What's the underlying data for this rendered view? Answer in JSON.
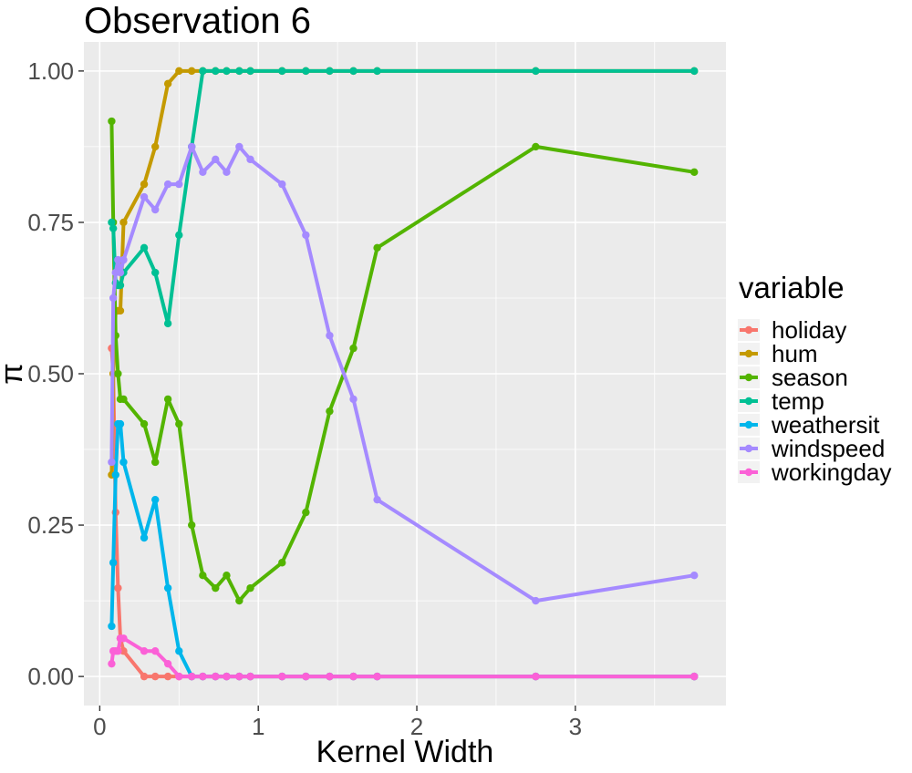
{
  "chart_data": {
    "type": "line",
    "title": "Observation 6",
    "xlabel": "Kernel Width",
    "ylabel": "π",
    "xlim": [
      -0.1,
      3.95
    ],
    "ylim": [
      -0.048,
      1.048
    ],
    "xticks": [
      0,
      1,
      2,
      3
    ],
    "yticks": [
      0.0,
      0.25,
      0.5,
      0.75,
      1.0
    ],
    "xtick_labels": [
      "0",
      "1",
      "2",
      "3"
    ],
    "ytick_labels": [
      "0.00",
      "0.25",
      "0.50",
      "0.75",
      "1.00"
    ],
    "grid": true,
    "legend": {
      "title": "variable",
      "position": "right"
    },
    "x": [
      0.075,
      0.085,
      0.1,
      0.115,
      0.13,
      0.15,
      0.28,
      0.35,
      0.43,
      0.5,
      0.58,
      0.65,
      0.73,
      0.8,
      0.88,
      0.95,
      1.15,
      1.3,
      1.45,
      1.6,
      1.75,
      2.75,
      3.75
    ],
    "series": [
      {
        "name": "holiday",
        "color": "#F8766D",
        "values": [
          0.542,
          0.5,
          0.271,
          0.146,
          0.063,
          0.042,
          0,
          0,
          0,
          0,
          0,
          0,
          0,
          0,
          0,
          0,
          0,
          0,
          0,
          0,
          0,
          0,
          0
        ]
      },
      {
        "name": "hum",
        "color": "#C49A00",
        "values": [
          0.333,
          0.5,
          0.604,
          0.604,
          0.604,
          0.75,
          0.813,
          0.875,
          0.979,
          1.0,
          1.0,
          1.0,
          1.0,
          1.0,
          1.0,
          1.0,
          1.0,
          1.0,
          1.0,
          1.0,
          1.0,
          1.0,
          1.0
        ]
      },
      {
        "name": "season",
        "color": "#53B400",
        "values": [
          0.917,
          0.75,
          0.563,
          0.5,
          0.458,
          0.458,
          0.417,
          0.354,
          0.458,
          0.417,
          0.25,
          0.167,
          0.146,
          0.167,
          0.125,
          0.146,
          0.188,
          0.271,
          0.438,
          0.542,
          0.708,
          0.875,
          0.833
        ]
      },
      {
        "name": "temp",
        "color": "#00C094",
        "values": [
          0.75,
          0.74,
          0.65,
          0.646,
          0.646,
          0.667,
          0.708,
          0.667,
          0.583,
          0.729,
          0.875,
          1.0,
          1.0,
          1.0,
          1.0,
          1.0,
          1.0,
          1.0,
          1.0,
          1.0,
          1.0,
          1.0,
          1.0
        ]
      },
      {
        "name": "weathersit",
        "color": "#00B6EB",
        "values": [
          0.083,
          0.188,
          0.333,
          0.417,
          0.417,
          0.354,
          0.229,
          0.292,
          0.146,
          0.042,
          0,
          0,
          0,
          0,
          0,
          0,
          0,
          0,
          0,
          0,
          0,
          0,
          0
        ]
      },
      {
        "name": "windspeed",
        "color": "#A58AFF",
        "values": [
          0.354,
          0.625,
          0.667,
          0.688,
          0.667,
          0.688,
          0.792,
          0.771,
          0.813,
          0.813,
          0.875,
          0.833,
          0.854,
          0.833,
          0.875,
          0.854,
          0.813,
          0.729,
          0.563,
          0.458,
          0.292,
          0.125,
          0.167
        ]
      },
      {
        "name": "workingday",
        "color": "#FB61D7",
        "values": [
          0.021,
          0.042,
          0.042,
          0.042,
          0.063,
          0.063,
          0.042,
          0.042,
          0.021,
          0,
          0,
          0,
          0,
          0,
          0,
          0,
          0,
          0,
          0,
          0,
          0,
          0,
          0
        ]
      }
    ]
  }
}
